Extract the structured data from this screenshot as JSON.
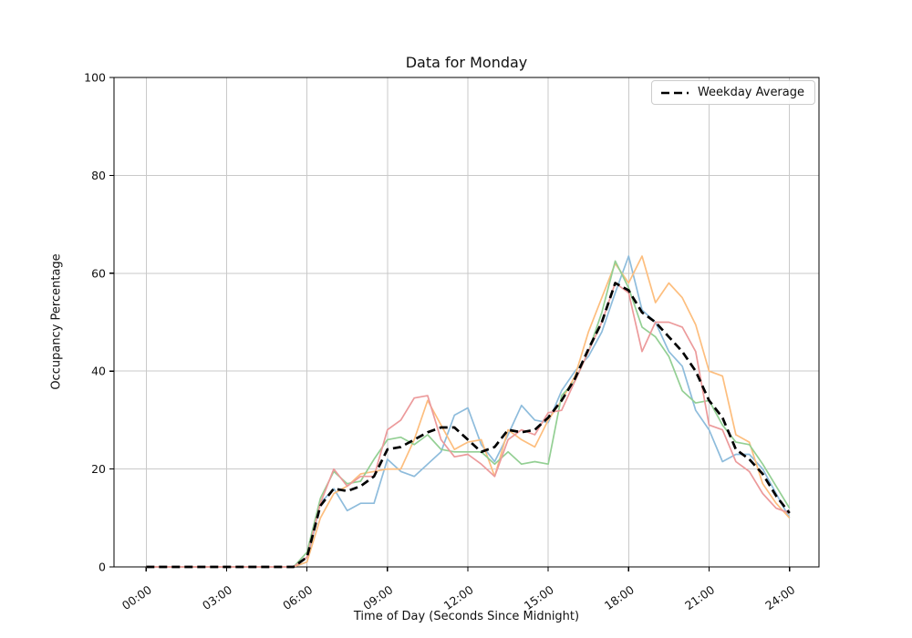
{
  "chart_data": {
    "type": "line",
    "title": "Data for Monday",
    "xlabel": "Time of Day (Seconds Since Midnight)",
    "ylabel": "Occupancy Percentage",
    "x_tick_labels": [
      "00:00",
      "03:00",
      "06:00",
      "09:00",
      "12:00",
      "15:00",
      "18:00",
      "21:00",
      "24:00"
    ],
    "x_tick_hours": [
      0,
      3,
      6,
      9,
      12,
      15,
      18,
      21,
      24
    ],
    "y_tick_labels": [
      "0",
      "20",
      "40",
      "60",
      "80",
      "100"
    ],
    "y_ticks": [
      0,
      20,
      40,
      60,
      80,
      100
    ],
    "ylim": [
      0,
      100
    ],
    "xlim_hours": [
      -1.2,
      25.1
    ],
    "grid": true,
    "grid_color": "#c9c9c9",
    "spine_color": "#000000",
    "legend_position": "upper right",
    "x_hours": [
      0,
      0.5,
      1,
      1.5,
      2,
      2.5,
      3,
      3.5,
      4,
      4.5,
      5,
      5.5,
      6,
      6.5,
      7,
      7.5,
      8,
      8.5,
      9,
      9.5,
      10,
      10.5,
      11,
      11.5,
      12,
      12.5,
      13,
      13.5,
      14,
      14.5,
      15,
      15.5,
      16,
      16.5,
      17,
      17.5,
      18,
      18.5,
      19,
      19.5,
      20,
      20.5,
      21,
      21.5,
      22,
      22.5,
      23,
      23.5,
      24
    ],
    "series": [
      {
        "name": "series-1",
        "color": "#8ebcdc",
        "dashed": false,
        "values": [
          0,
          0,
          0,
          0,
          0,
          0,
          0,
          0,
          0,
          0,
          0,
          0,
          1,
          13,
          16,
          11.5,
          13,
          13,
          22,
          19.5,
          18.5,
          21,
          23.5,
          31,
          32.5,
          25,
          21.5,
          27,
          33,
          30,
          29.5,
          36,
          40,
          43,
          48,
          56,
          63.5,
          52.5,
          50,
          44,
          41,
          32,
          28,
          21.5,
          23,
          23,
          20,
          15,
          10
        ]
      },
      {
        "name": "series-2",
        "color": "#fdbe7e",
        "dashed": false,
        "values": [
          0,
          0,
          0,
          0,
          0,
          0,
          0,
          0,
          0,
          0,
          0,
          0,
          1,
          10,
          15,
          16.5,
          19,
          19.5,
          20,
          20,
          26,
          34,
          29,
          24,
          25.5,
          26,
          18.5,
          28,
          26,
          24.5,
          30,
          34,
          39,
          48,
          55,
          62,
          58,
          63.5,
          54,
          58,
          55,
          49.5,
          40,
          39,
          27,
          25.5,
          17,
          13,
          10
        ]
      },
      {
        "name": "series-3",
        "color": "#93cf93",
        "dashed": false,
        "values": [
          0,
          0,
          0,
          0,
          0,
          0,
          0,
          0,
          0,
          0,
          0,
          0,
          3,
          14,
          19.5,
          17,
          17.5,
          22,
          26,
          26.5,
          25,
          27,
          24,
          23.5,
          23.5,
          23.5,
          21,
          23.5,
          21,
          21.5,
          21,
          35,
          38,
          44,
          52,
          62.5,
          57,
          49,
          47,
          43,
          36,
          33.5,
          34,
          29,
          25.5,
          25,
          21,
          16.5,
          12
        ]
      },
      {
        "name": "series-4",
        "color": "#ec9a9b",
        "dashed": false,
        "values": [
          0,
          0,
          0,
          0,
          0,
          0,
          0,
          0,
          0,
          0,
          0,
          0,
          2,
          13,
          20,
          16.5,
          18.5,
          18.5,
          28,
          30,
          34.5,
          35,
          26,
          22.5,
          23,
          21,
          18.5,
          26,
          28,
          27,
          31.5,
          32,
          38,
          44,
          50,
          58,
          56,
          44,
          50,
          50,
          49,
          44,
          29,
          28,
          21.5,
          19.5,
          15,
          12,
          11
        ]
      },
      {
        "name": "Weekday Average",
        "color": "#000000",
        "dashed": true,
        "values": [
          0,
          0,
          0,
          0,
          0,
          0,
          0,
          0,
          0,
          0,
          0,
          0,
          2,
          12.5,
          16,
          15.5,
          16.5,
          18.5,
          24,
          24.5,
          26,
          27.5,
          28.5,
          28.5,
          26,
          23.5,
          24.5,
          28,
          27.5,
          28,
          30.5,
          34,
          38.5,
          44.5,
          50,
          58,
          56.5,
          52,
          50,
          47,
          44,
          40,
          34,
          30.5,
          24,
          22,
          19,
          14.5,
          11
        ]
      }
    ],
    "legend": {
      "entries": [
        {
          "label": "Weekday Average",
          "style": "dashed",
          "color": "#000000"
        }
      ]
    }
  }
}
